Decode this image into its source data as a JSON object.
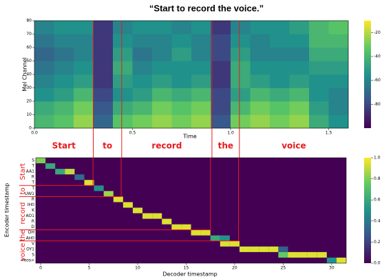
{
  "chart_data": [
    {
      "type": "spectrogram",
      "title": "“Start to record the voice.”",
      "xlabel": "Time",
      "ylabel": "Mel Channel",
      "xlim": [
        0,
        1.6
      ],
      "ylim": [
        0,
        80
      ],
      "xticks": [
        {
          "value": 0,
          "label": "0.0"
        },
        0.5,
        {
          "value": 1,
          "label": "1.0"
        },
        1.5
      ],
      "yticks": [
        0,
        10,
        20,
        30,
        40,
        50,
        60,
        70,
        80
      ],
      "clim": [
        -100,
        -10
      ],
      "cticks": [
        -20,
        -40,
        -60,
        -80
      ],
      "colormap": "viridis",
      "values": [
        [
          -40,
          -45,
          -55,
          -60,
          -65,
          -70,
          -65,
          -60
        ],
        [
          -35,
          -40,
          -50,
          -55,
          -60,
          -65,
          -60,
          -55
        ],
        [
          -25,
          -30,
          -40,
          -50,
          -55,
          -60,
          -60,
          -55
        ],
        [
          -70,
          -75,
          -80,
          -85,
          -85,
          -85,
          -85,
          -85
        ],
        [
          -35,
          -45,
          -55,
          -50,
          -45,
          -50,
          -55,
          -60
        ],
        [
          -30,
          -40,
          -50,
          -55,
          -60,
          -65,
          -60,
          -55
        ],
        [
          -25,
          -30,
          -40,
          -50,
          -55,
          -60,
          -60,
          -55
        ],
        [
          -30,
          -35,
          -45,
          -55,
          -55,
          -50,
          -55,
          -60
        ],
        [
          -25,
          -30,
          -40,
          -50,
          -55,
          -60,
          -60,
          -55
        ],
        [
          -75,
          -80,
          -80,
          -85,
          -85,
          -80,
          -80,
          -85
        ],
        [
          -30,
          -40,
          -50,
          -45,
          -45,
          -50,
          -55,
          -60
        ],
        [
          -25,
          -30,
          -40,
          -50,
          -55,
          -60,
          -60,
          -55
        ],
        [
          -30,
          -35,
          -45,
          -55,
          -55,
          -60,
          -55,
          -55
        ],
        [
          -25,
          -30,
          -40,
          -50,
          -55,
          -60,
          -55,
          -50
        ],
        [
          -45,
          -50,
          -55,
          -55,
          -50,
          -45,
          -40,
          -40
        ],
        [
          -55,
          -60,
          -60,
          -55,
          -50,
          -45,
          -40,
          -35
        ]
      ],
      "words": [
        "Start",
        "to",
        "record",
        "the",
        "voice"
      ],
      "word_boundaries": [
        0.3,
        0.445,
        0.905,
        1.045
      ],
      "boundary_color": "#e8191c"
    },
    {
      "type": "alignment",
      "xlabel": "Decoder timestamp",
      "ylabel": "Encoder timestamp",
      "xlim": [
        -0.5,
        31.5
      ],
      "xticks": [
        0,
        5,
        10,
        15,
        20,
        25,
        30
      ],
      "categories": [
        "S",
        "T",
        "AA1",
        "R",
        "T",
        "T",
        "UW1",
        "R",
        "IH0",
        "K",
        "AO1",
        "R",
        "D",
        "DH",
        "AH0",
        "V",
        "OY1",
        "S",
        "<eos>"
      ],
      "clim": [
        0,
        1
      ],
      "cticks": [
        {
          "value": 0,
          "label": "0.0"
        },
        0.2,
        0.4,
        0.6,
        0.8,
        {
          "value": 1,
          "label": "1.0"
        }
      ],
      "colormap": "viridis",
      "rows": [
        {
          "steps": [
            0
          ],
          "weights": [
            0.8
          ]
        },
        {
          "steps": [
            1
          ],
          "weights": [
            0.6
          ]
        },
        {
          "steps": [
            2,
            3
          ],
          "weights": [
            0.6,
            0.9
          ]
        },
        {
          "steps": [
            4
          ],
          "weights": [
            0.35
          ]
        },
        {
          "steps": [
            5
          ],
          "weights": [
            0.95
          ]
        },
        {
          "steps": [
            6
          ],
          "weights": [
            0.5
          ]
        },
        {
          "steps": [
            7
          ],
          "weights": [
            0.85
          ]
        },
        {
          "steps": [
            8
          ],
          "weights": [
            0.95
          ]
        },
        {
          "steps": [
            9
          ],
          "weights": [
            0.95
          ]
        },
        {
          "steps": [
            10
          ],
          "weights": [
            0.95
          ]
        },
        {
          "steps": [
            11,
            12
          ],
          "weights": [
            0.95,
            0.95
          ]
        },
        {
          "steps": [
            13
          ],
          "weights": [
            0.95
          ]
        },
        {
          "steps": [
            14,
            15
          ],
          "weights": [
            0.95,
            0.95
          ]
        },
        {
          "steps": [
            16,
            17
          ],
          "weights": [
            0.95,
            0.95
          ]
        },
        {
          "steps": [
            18,
            19
          ],
          "weights": [
            0.6,
            0.5
          ]
        },
        {
          "steps": [
            19,
            20
          ],
          "weights": [
            0.95,
            0.95
          ]
        },
        {
          "steps": [
            21,
            22,
            23,
            24,
            25
          ],
          "weights": [
            0.95,
            0.95,
            0.95,
            0.95,
            0.3
          ]
        },
        {
          "steps": [
            25,
            26,
            27,
            28,
            29
          ],
          "weights": [
            0.75,
            0.95,
            0.95,
            0.95,
            0.95
          ]
        },
        {
          "steps": [
            30,
            31
          ],
          "weights": [
            0.5,
            0.95
          ]
        }
      ],
      "words": [
        "Start",
        "to",
        "record",
        "the",
        "voice"
      ],
      "decoder_boundaries": [
        5.4,
        8.3,
        17.5,
        20.4
      ],
      "encoder_boundaries": [
        5,
        7,
        13,
        15
      ],
      "boundary_color": "#e8191c"
    }
  ]
}
